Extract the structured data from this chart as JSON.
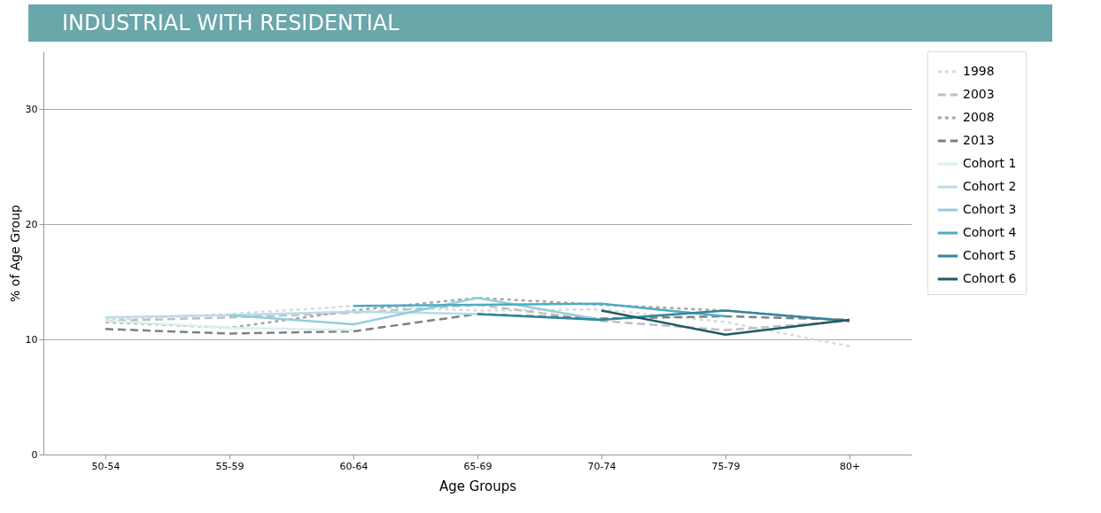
{
  "chart_data": {
    "type": "line",
    "title": "INDUSTRIAL WITH RESIDENTIAL",
    "xlabel": "Age Groups",
    "ylabel": "% of Age Group",
    "categories": [
      "50-54",
      "55-59",
      "60-64",
      "65-69",
      "70-74",
      "75-79",
      "80+"
    ],
    "ylim": [
      0,
      35
    ],
    "yticks": [
      0,
      10,
      20,
      30
    ],
    "grid": "y",
    "legend": "top right",
    "series": [
      {
        "name": "1998",
        "color": "#d9d9d9",
        "line_style": "dotted",
        "values": [
          11.7,
          12.2,
          12.9,
          12.5,
          12.6,
          11.5,
          9.4
        ]
      },
      {
        "name": "2003",
        "color": "#bfbfbf",
        "line_style": "dashed",
        "values": [
          11.6,
          11.9,
          12.3,
          13.0,
          11.6,
          10.8,
          11.6
        ]
      },
      {
        "name": "2008",
        "color": "#a6a6a6",
        "line_style": "dotted",
        "values": [
          11.5,
          11.0,
          12.5,
          13.6,
          13.0,
          12.5,
          11.6
        ]
      },
      {
        "name": "2013",
        "color": "#808080",
        "line_style": "dashed",
        "values": [
          10.9,
          10.5,
          10.7,
          12.2,
          11.8,
          12.0,
          11.7
        ]
      },
      {
        "name": "Cohort 1",
        "color": "#daeef3",
        "line_style": "solid",
        "values": [
          11.6,
          11.0,
          10.8,
          null,
          null,
          null,
          null
        ]
      },
      {
        "name": "Cohort 2",
        "color": "#b7dde8",
        "line_style": "solid",
        "values": [
          11.9,
          12.1,
          12.4,
          12.2,
          null,
          null,
          null
        ]
      },
      {
        "name": "Cohort 3",
        "color": "#92cddc",
        "line_style": "solid",
        "values": [
          null,
          12.1,
          11.3,
          13.6,
          11.7,
          null,
          null
        ]
      },
      {
        "name": "Cohort 4",
        "color": "#4bacc6",
        "line_style": "solid",
        "values": [
          null,
          null,
          12.9,
          13.0,
          13.1,
          12.0,
          null
        ]
      },
      {
        "name": "Cohort 5",
        "color": "#31859c",
        "line_style": "solid",
        "values": [
          null,
          null,
          null,
          12.2,
          11.7,
          12.5,
          11.6
        ]
      },
      {
        "name": "Cohort 6",
        "color": "#215968",
        "line_style": "solid",
        "values": [
          null,
          null,
          null,
          null,
          12.5,
          10.4,
          11.7
        ]
      }
    ]
  }
}
